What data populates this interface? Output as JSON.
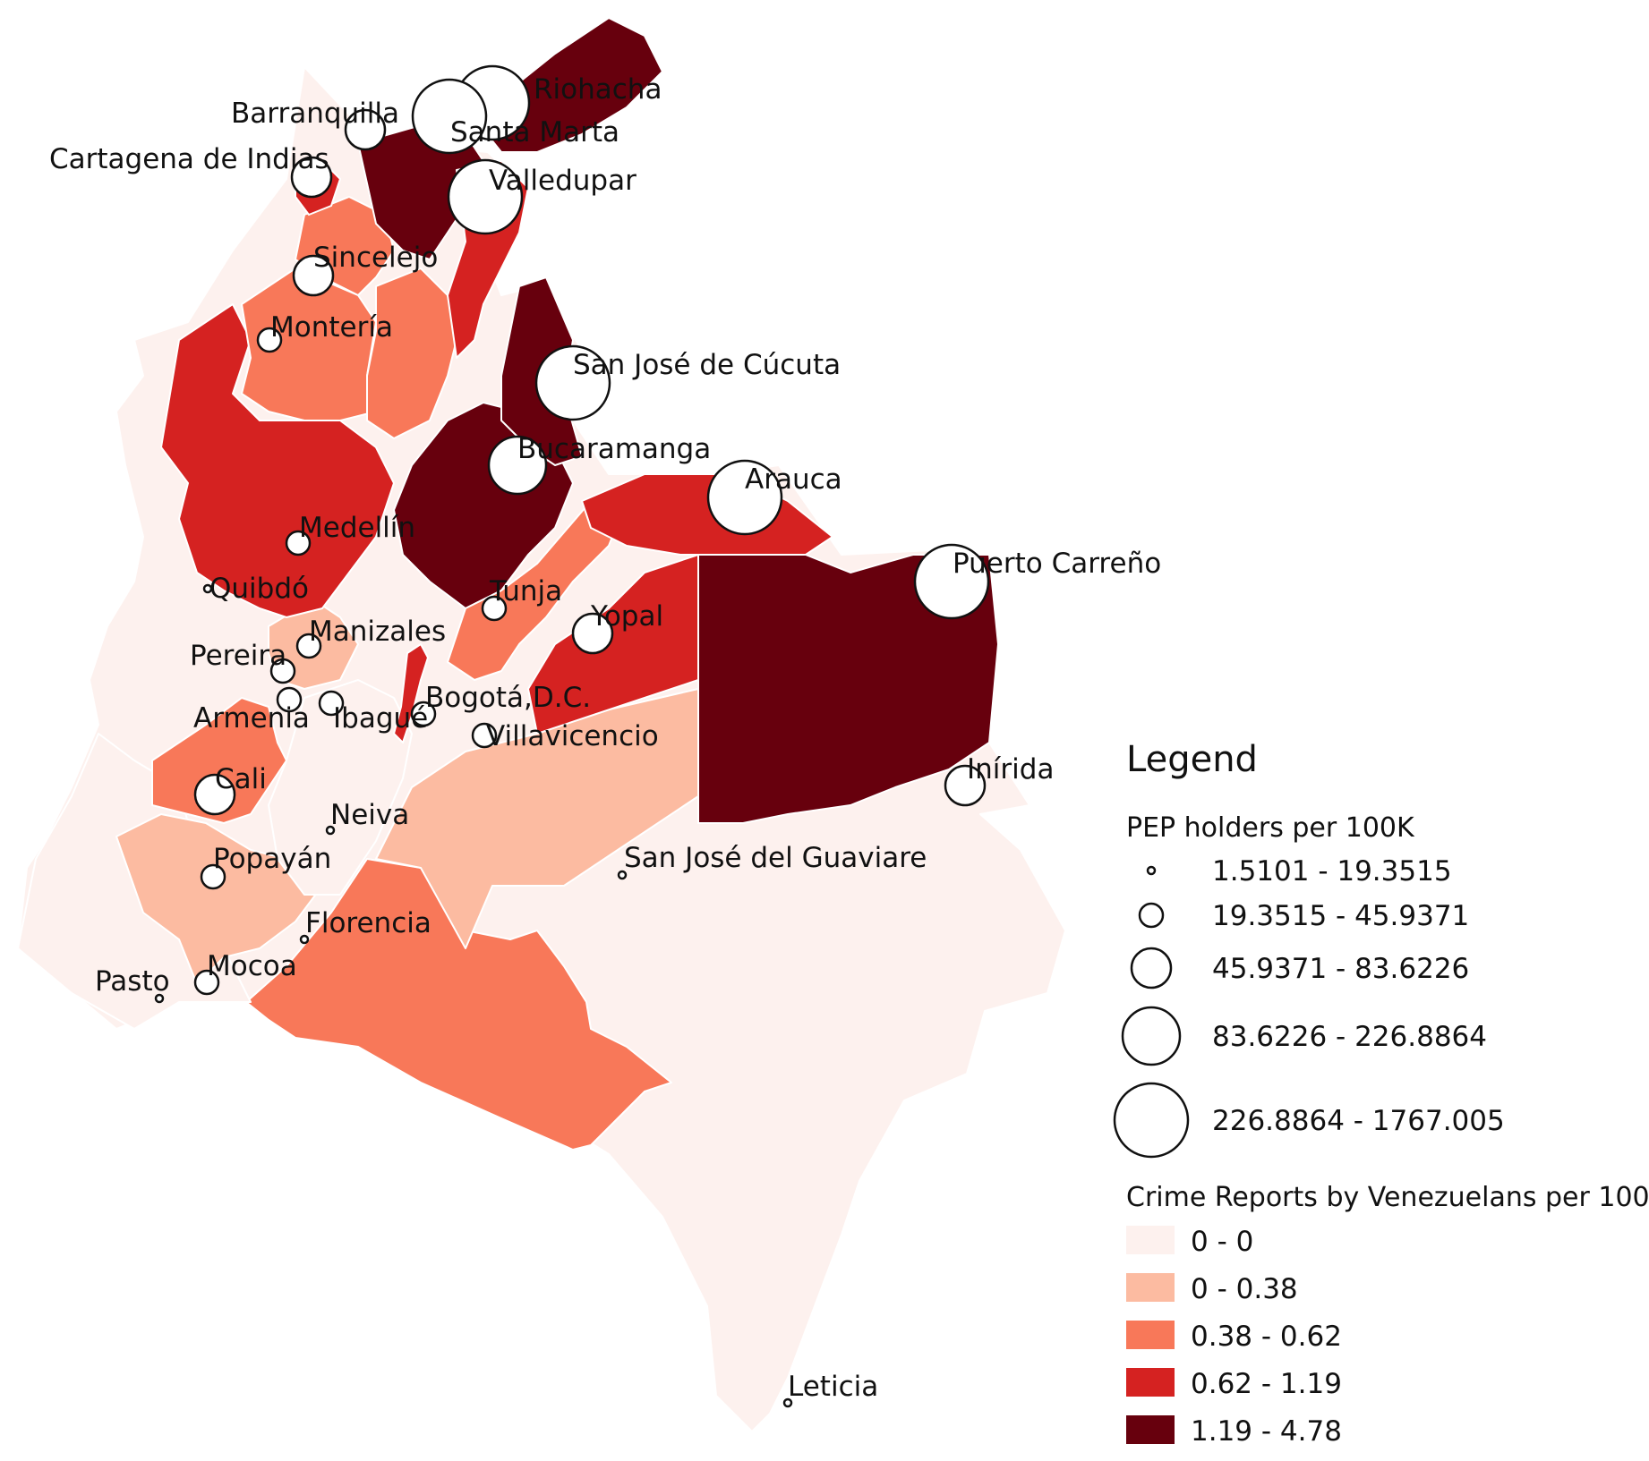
{
  "colors": {
    "class_0": "#fdf1ee",
    "class_1": "#fcbba1",
    "class_2": "#f87859",
    "class_3": "#d52221",
    "class_4": "#67000d",
    "circle_fill": "#ffffff",
    "circle_stroke": "#111111",
    "background": "#ffffff"
  },
  "regions": [
    {
      "name": "national-outline",
      "class": 0
    },
    {
      "name": "amazon-south",
      "class": 2
    },
    {
      "name": "meta",
      "class": 1
    },
    {
      "name": "narino",
      "class": 0
    },
    {
      "name": "cauca",
      "class": 1
    },
    {
      "name": "valle",
      "class": 2
    },
    {
      "name": "eje-cafetero",
      "class": 1
    },
    {
      "name": "tolima-huila",
      "class": 0
    },
    {
      "name": "antioquia",
      "class": 3
    },
    {
      "name": "cordoba",
      "class": 2
    },
    {
      "name": "sucre-bolivar-west",
      "class": 2
    },
    {
      "name": "bolivar-south",
      "class": 2
    },
    {
      "name": "atlantico-strip",
      "class": 3
    },
    {
      "name": "magdalena-bolivar-east",
      "class": 4
    },
    {
      "name": "cesar",
      "class": 3
    },
    {
      "name": "la-guajira",
      "class": 4
    },
    {
      "name": "santander",
      "class": 4
    },
    {
      "name": "norte-de-santander",
      "class": 4
    },
    {
      "name": "boyaca",
      "class": 2
    },
    {
      "name": "casanare",
      "class": 3
    },
    {
      "name": "arauca",
      "class": 3
    },
    {
      "name": "vichada",
      "class": 4
    },
    {
      "name": "cundinamarca-east",
      "class": 3
    }
  ],
  "cities": [
    {
      "name": "Riohacha",
      "size_class": 4
    },
    {
      "name": "Santa Marta",
      "size_class": 4
    },
    {
      "name": "Barranquilla",
      "size_class": 2
    },
    {
      "name": "Cartagena de Indias",
      "size_class": 2
    },
    {
      "name": "Valledupar",
      "size_class": 4
    },
    {
      "name": "Sincelejo",
      "size_class": 2
    },
    {
      "name": "Montería",
      "size_class": 1
    },
    {
      "name": "San José de Cúcuta",
      "size_class": 4
    },
    {
      "name": "Bucaramanga",
      "size_class": 3
    },
    {
      "name": "Arauca",
      "size_class": 4
    },
    {
      "name": "Medellín",
      "size_class": 1
    },
    {
      "name": "Puerto Carreño",
      "size_class": 4
    },
    {
      "name": "Quibdó",
      "size_class": 0
    },
    {
      "name": "Tunja",
      "size_class": 1
    },
    {
      "name": "Yopal",
      "size_class": 2
    },
    {
      "name": "Manizales",
      "size_class": 1
    },
    {
      "name": "Pereira",
      "size_class": 1
    },
    {
      "name": "Armenia",
      "size_class": 1
    },
    {
      "name": "Ibagué",
      "size_class": 1
    },
    {
      "name": "Bogotá,D.C.",
      "size_class": 1
    },
    {
      "name": "Villavicencio",
      "size_class": 1
    },
    {
      "name": "Inírida",
      "size_class": 2
    },
    {
      "name": "Cali",
      "size_class": 2
    },
    {
      "name": "Neiva",
      "size_class": 0
    },
    {
      "name": "San José del Guaviare",
      "size_class": 0
    },
    {
      "name": "Popayán",
      "size_class": 1
    },
    {
      "name": "Florencia",
      "size_class": 0
    },
    {
      "name": "Mocoa",
      "size_class": 1
    },
    {
      "name": "Pasto",
      "size_class": 0
    },
    {
      "name": "Leticia",
      "size_class": 0
    }
  ],
  "legend": {
    "title": "Legend",
    "size_title": "PEP holders per 100K",
    "size_classes": [
      "1.5101 - 19.3515",
      "19.3515 - 45.9371",
      "45.9371 - 83.6226",
      "83.6226 - 226.8864",
      "226.8864 - 1767.005"
    ],
    "color_title": "Crime Reports by Venezuelans per 100K",
    "color_classes": [
      "0 - 0",
      "0 - 0.38",
      "0.38 - 0.62",
      "0.62 - 1.19",
      "1.19 - 4.78"
    ]
  }
}
